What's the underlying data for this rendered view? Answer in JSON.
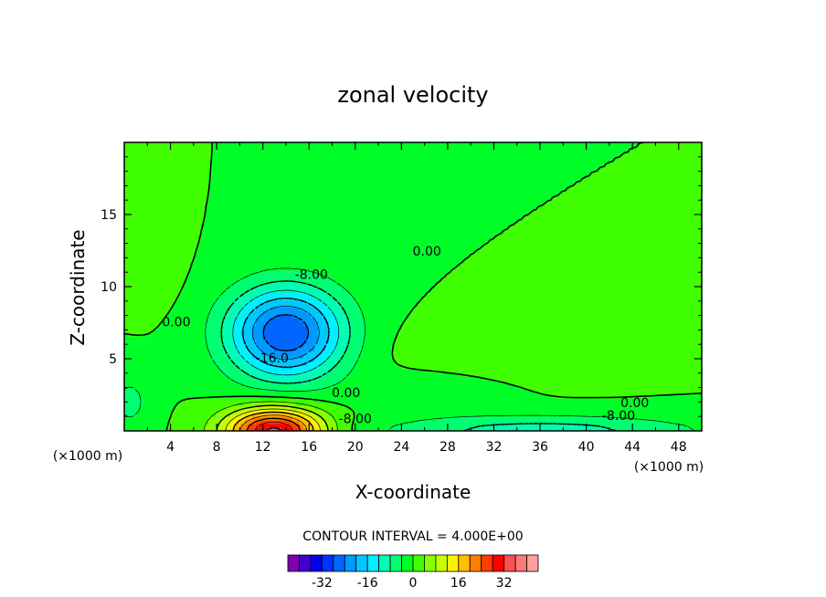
{
  "chart_data": {
    "type": "contour",
    "title": "zonal velocity",
    "xlabel": "X-coordinate",
    "ylabel": "Z-coordinate",
    "x_unit": "(×1000 m)",
    "z_unit": "(×1000 m)",
    "xlim": [
      0,
      50
    ],
    "ylim": [
      0,
      20
    ],
    "x_ticks": [
      4,
      8,
      12,
      16,
      20,
      24,
      28,
      32,
      36,
      40,
      44,
      48
    ],
    "y_ticks": [
      5,
      10,
      15
    ],
    "contour_interval_text": "CONTOUR INTERVAL = 4.000E+00",
    "contour_labels": [
      {
        "text": "0.00",
        "x": 4.5,
        "z": 7.5
      },
      {
        "text": "0.00",
        "x": 26.2,
        "z": 12.4
      },
      {
        "text": "-8.00",
        "x": 16.2,
        "z": 10.8
      },
      {
        "text": "-16.0",
        "x": 12.8,
        "z": 5.0
      },
      {
        "text": "0.00",
        "x": 19.2,
        "z": 2.6
      },
      {
        "text": "-8.00",
        "x": 20.0,
        "z": 0.8
      },
      {
        "text": "0.00",
        "x": 44.2,
        "z": 1.9
      },
      {
        "text": "-8.00",
        "x": 42.8,
        "z": 1.0
      }
    ],
    "field": {
      "background": 0,
      "features": [
        {
          "x": 14,
          "z": 6.8,
          "sx": 5.0,
          "sz": 3.2,
          "amp": -28
        },
        {
          "x": 13,
          "z": 0.0,
          "sx": 4.2,
          "sz": 1.6,
          "amp": 34
        },
        {
          "x": 36,
          "z": 0.0,
          "sx": 14.0,
          "sz": 1.1,
          "amp": -10
        },
        {
          "x": 34,
          "z": 5.6,
          "sx": 9.0,
          "sz": 2.0,
          "amp": 3.5
        },
        {
          "x": 2,
          "z": 11.5,
          "sx": 2.3,
          "sz": 2.6,
          "amp": 3.5
        },
        {
          "x": 0.5,
          "z": 2.0,
          "sx": 2.0,
          "sz": 2.2,
          "amp": -5
        },
        {
          "x": 27,
          "z": 2.8,
          "sx": 6.0,
          "sz": 1.3,
          "amp": -3
        }
      ]
    },
    "colorbar": {
      "levels": [
        -36,
        -32,
        -28,
        -24,
        -20,
        -16,
        -12,
        -8,
        -4,
        0,
        4,
        8,
        12,
        16,
        20,
        24,
        28,
        32,
        36
      ],
      "colors": [
        "#7f00b2",
        "#3f00d0",
        "#0000ee",
        "#0033ff",
        "#0066ff",
        "#0099ff",
        "#00c8ff",
        "#00f0ff",
        "#00ffb4",
        "#00ff70",
        "#00ff28",
        "#40ff00",
        "#88ff00",
        "#c8ff00",
        "#fff000",
        "#ffc000",
        "#ff8000",
        "#ff3e00",
        "#ff0000",
        "#ff5050",
        "#ff7878",
        "#ff9ea0"
      ],
      "tick_labels": [
        "-32",
        "-16",
        "0",
        "16",
        "32"
      ],
      "tick_values": [
        -32,
        -16,
        0,
        16,
        32
      ]
    }
  }
}
